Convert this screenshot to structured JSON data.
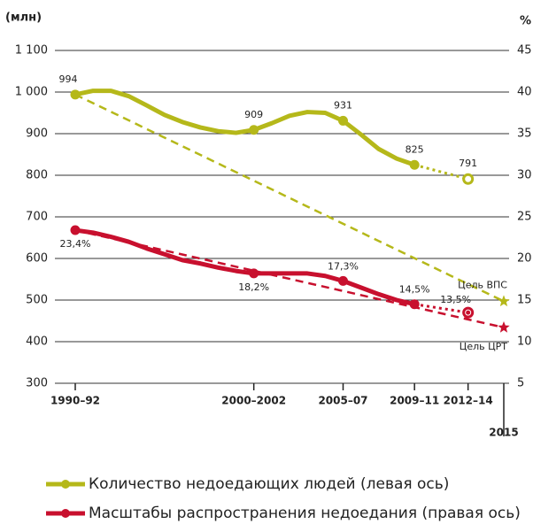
{
  "chart_data": {
    "type": "line",
    "y_label": "(млн)",
    "y2_label": "%",
    "x": [
      1991,
      1992,
      1993,
      1994,
      1995,
      1996,
      1997,
      1998,
      1999,
      2000,
      2001,
      2002,
      2003,
      2004,
      2005,
      2006,
      2007,
      2008,
      2009,
      2010,
      2013
    ],
    "series": [
      {
        "name": "Количество недоедающих людей (левая ось)",
        "color": "#b5b81a",
        "values": [
          994,
          1003,
          1003,
          990,
          968,
          945,
          928,
          915,
          906,
          902,
          909,
          925,
          943,
          952,
          950,
          931,
          898,
          863,
          840,
          825,
          791
        ],
        "value_labels": [
          "994",
          null,
          null,
          null,
          null,
          null,
          null,
          null,
          null,
          null,
          "909",
          null,
          null,
          null,
          null,
          "931",
          null,
          null,
          null,
          "825",
          "791"
        ]
      },
      {
        "name": "Масштабы распространения недоедания (правая ось)",
        "color": "#c8102e",
        "axis": "y2",
        "values": [
          23.4,
          23.1,
          22.6,
          22.0,
          21.2,
          20.5,
          19.8,
          19.4,
          18.9,
          18.5,
          18.2,
          18.2,
          18.2,
          18.2,
          17.9,
          17.3,
          16.5,
          15.7,
          15.0,
          14.5,
          13.5
        ],
        "value_labels": [
          "23,4%",
          null,
          null,
          null,
          null,
          null,
          null,
          null,
          null,
          null,
          "18,2%",
          null,
          null,
          null,
          null,
          "17,3%",
          null,
          null,
          null,
          "14,5%",
          "13,5%"
        ]
      }
    ],
    "targets": [
      {
        "label": "Цель ВПС",
        "x": 2015,
        "value": 497
      },
      {
        "label": "Цель ЦРТ",
        "x": 2015,
        "value": 11.7,
        "axis": "y2"
      }
    ],
    "xlim": [
      1991,
      2015
    ],
    "xticks": [
      {
        "value": 1991,
        "label": "1990–92"
      },
      {
        "value": 2001,
        "label": "2000–2002"
      },
      {
        "value": 2006,
        "label": "2005–07"
      },
      {
        "value": 2010,
        "label": "2009–11"
      },
      {
        "value": 2013,
        "label": "2012–14"
      },
      {
        "value": 2015,
        "label": "2015"
      }
    ],
    "ylim": [
      300,
      1100
    ],
    "yticks": [
      300,
      400,
      500,
      600,
      700,
      800,
      900,
      {
        "value": 1000,
        "label": "1 000"
      },
      {
        "value": 1100,
        "label": "1 100"
      }
    ],
    "y2lim": [
      5,
      45
    ],
    "y2ticks": [
      5,
      10,
      15,
      20,
      25,
      30,
      35,
      40,
      45
    ],
    "grid": true
  }
}
